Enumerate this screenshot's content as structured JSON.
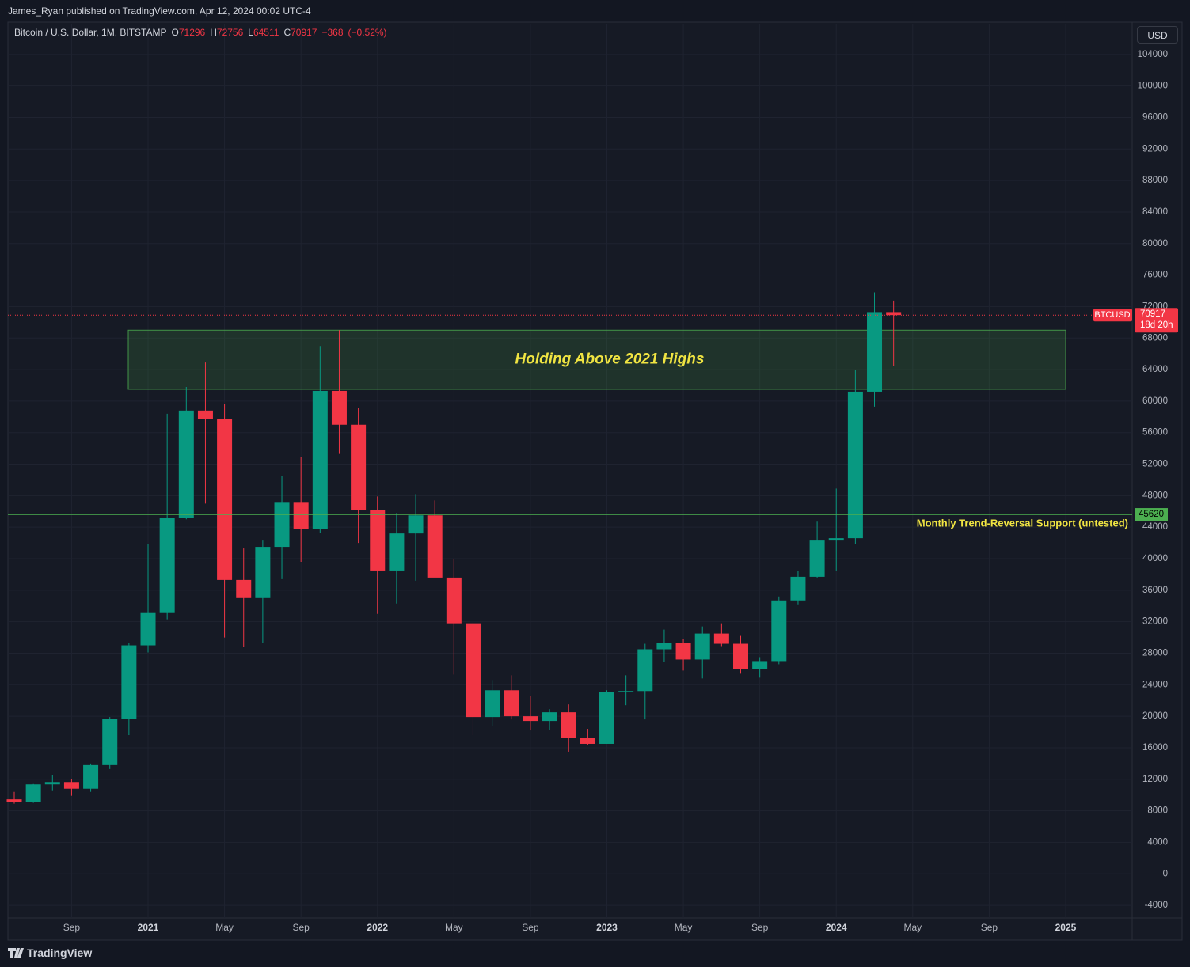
{
  "header": {
    "publisher": "James_Ryan published on TradingView.com, Apr 12, 2024 00:02 UTC-4"
  },
  "currency": "USD",
  "footer": {
    "brand": "TradingView"
  },
  "chart_data": {
    "type": "candlestick",
    "title": "Bitcoin / U.S. Dollar, 1M, BITSTAMP",
    "ohlc_legend": {
      "letters": [
        "O",
        "H",
        "L",
        "C"
      ],
      "open": 71296,
      "high": 72756,
      "low": 64511,
      "close": 70917,
      "change": {
        "value": -368,
        "label": "−368"
      },
      "change_percent": {
        "value": -0.52,
        "label": "(−0.52%)"
      }
    },
    "categories": [
      null,
      null,
      null,
      "Sep",
      null,
      null,
      null,
      "2021",
      null,
      null,
      null,
      "May",
      null,
      null,
      null,
      "Sep",
      null,
      null,
      null,
      "2022",
      null,
      null,
      null,
      "May",
      null,
      null,
      null,
      "Sep",
      null,
      null,
      null,
      "2023",
      null,
      null,
      null,
      "May",
      null,
      null,
      null,
      "Sep",
      null,
      null,
      null,
      "2024",
      null,
      null,
      null,
      "May",
      null,
      null,
      null,
      "Sep",
      null,
      null,
      null,
      "2025"
    ],
    "series": [
      {
        "name": "BTCUSD",
        "up_color": "#089981",
        "down_color": "#f23645",
        "open": [
          9450,
          9150,
          11350,
          11650,
          10800,
          13800,
          19700,
          29000,
          33100,
          45200,
          58800,
          57700,
          37300,
          35000,
          41500,
          47100,
          43800,
          61300,
          57000,
          46200,
          38500,
          43200,
          45500,
          37600,
          31800,
          19900,
          23300,
          20000,
          19400,
          20500,
          17200,
          16500,
          23100,
          23200,
          28500,
          29300,
          27200,
          30500,
          29200,
          26000,
          27000,
          34700,
          37700,
          42300,
          42600,
          61200,
          71296,
          null,
          null,
          null,
          null,
          null,
          null,
          null,
          null,
          null
        ],
        "high": [
          10400,
          11400,
          12500,
          12000,
          14000,
          19900,
          29300,
          41900,
          58400,
          61800,
          64900,
          59600,
          41300,
          42300,
          50500,
          52900,
          67000,
          69000,
          59100,
          47900,
          45800,
          48200,
          47400,
          40000,
          31900,
          24600,
          25200,
          22600,
          20900,
          21500,
          18400,
          23300,
          25200,
          29200,
          31000,
          29800,
          31400,
          31800,
          30200,
          27500,
          35200,
          38400,
          44700,
          48900,
          64000,
          73800,
          72756,
          null,
          null,
          null,
          null,
          null,
          null,
          null,
          null,
          null
        ],
        "low": [
          8900,
          9000,
          10600,
          9900,
          10400,
          13300,
          17600,
          28100,
          32300,
          45000,
          47000,
          30000,
          28800,
          29300,
          37400,
          39600,
          43300,
          53300,
          42000,
          33000,
          34300,
          37200,
          37700,
          25300,
          17600,
          18800,
          19600,
          18200,
          18300,
          15500,
          16300,
          16500,
          21400,
          19600,
          26900,
          25800,
          24800,
          28900,
          25400,
          24900,
          26600,
          34200,
          37600,
          38500,
          41900,
          59300,
          64511,
          null,
          null,
          null,
          null,
          null,
          null,
          null,
          null,
          null
        ],
        "close": [
          9150,
          11350,
          11650,
          10800,
          13800,
          19700,
          29000,
          33100,
          45200,
          58800,
          57700,
          37300,
          35000,
          41500,
          47100,
          43800,
          61300,
          57000,
          46200,
          38500,
          43200,
          45500,
          37600,
          31800,
          19900,
          23300,
          20000,
          19400,
          20500,
          17200,
          16500,
          23100,
          23200,
          28500,
          29300,
          27200,
          30500,
          29200,
          26000,
          27000,
          34700,
          37700,
          42300,
          42600,
          61200,
          71296,
          70917,
          null,
          null,
          null,
          null,
          null,
          null,
          null,
          null,
          null
        ]
      }
    ],
    "ylim": [
      -5600,
      107900
    ],
    "yticks": [
      -4000,
      0,
      4000,
      8000,
      12000,
      16000,
      20000,
      24000,
      28000,
      32000,
      36000,
      40000,
      44000,
      48000,
      52000,
      56000,
      60000,
      64000,
      68000,
      72000,
      76000,
      80000,
      84000,
      88000,
      92000,
      96000,
      100000,
      104000
    ],
    "grid": true,
    "last_price": {
      "value": 70917,
      "countdown": "18d 20h",
      "color": "#f23645"
    },
    "zone": {
      "label": "Holding Above 2021 Highs",
      "low": 61500,
      "high": 69000,
      "color": "#4caf50"
    },
    "support": {
      "value": 45620,
      "label": "Monthly Trend-Reversal Support (untested)",
      "color": "#4caf50"
    }
  }
}
